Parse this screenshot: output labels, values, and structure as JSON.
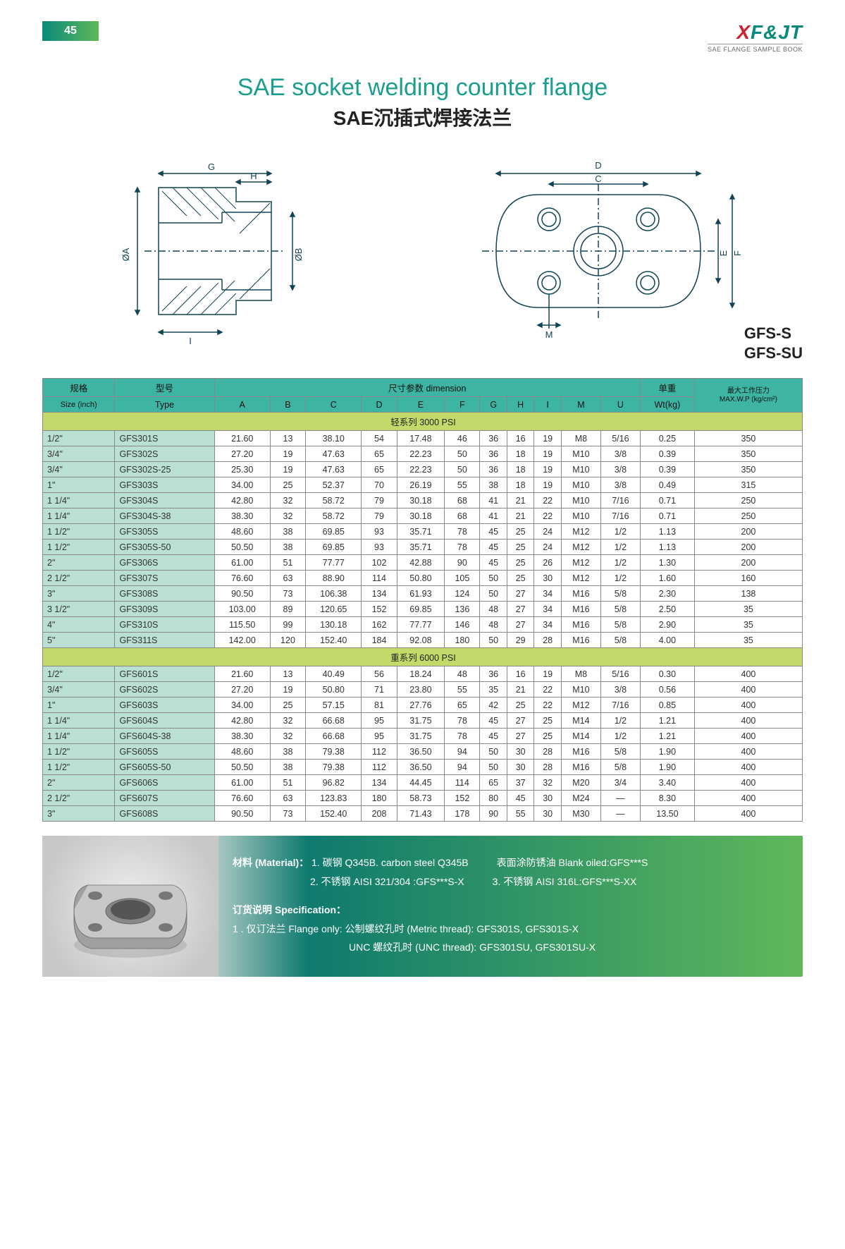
{
  "page_number": "45",
  "brand": {
    "prefix": "X",
    "suffix": "F&JT",
    "subtitle": "SAE FLANGE SAMPLE BOOK"
  },
  "title": {
    "en": "SAE socket welding counter flange",
    "cn": "SAE沉插式焊接法兰"
  },
  "model_codes": [
    "GFS-S",
    "GFS-SU"
  ],
  "diagram_labels": {
    "left": [
      "G",
      "H",
      "ØA",
      "ØB",
      "I"
    ],
    "right": [
      "D",
      "C",
      "E",
      "F",
      "M"
    ]
  },
  "table": {
    "headers_row1": {
      "size_cn": "规格",
      "type_cn": "型号",
      "dim_cn": "尺寸参数 dimension",
      "wt_cn": "单重",
      "maxwp_cn": "最大工作压力"
    },
    "headers_row2": {
      "size": "Size (inch)",
      "type": "Type",
      "cols": [
        "A",
        "B",
        "C",
        "D",
        "E",
        "F",
        "G",
        "H",
        "I",
        "M",
        "U"
      ],
      "wt": "Wt(kg)",
      "maxwp": "MAX.W.P (kg/cm²)"
    },
    "section1_label": "轻系列 3000 PSI",
    "section1_rows": [
      [
        "1/2\"",
        "GFS301S",
        "21.60",
        "13",
        "38.10",
        "54",
        "17.48",
        "46",
        "36",
        "16",
        "19",
        "M8",
        "5/16",
        "0.25",
        "350"
      ],
      [
        "3/4\"",
        "GFS302S",
        "27.20",
        "19",
        "47.63",
        "65",
        "22.23",
        "50",
        "36",
        "18",
        "19",
        "M10",
        "3/8",
        "0.39",
        "350"
      ],
      [
        "3/4\"",
        "GFS302S-25",
        "25.30",
        "19",
        "47.63",
        "65",
        "22.23",
        "50",
        "36",
        "18",
        "19",
        "M10",
        "3/8",
        "0.39",
        "350"
      ],
      [
        "1\"",
        "GFS303S",
        "34.00",
        "25",
        "52.37",
        "70",
        "26.19",
        "55",
        "38",
        "18",
        "19",
        "M10",
        "3/8",
        "0.49",
        "315"
      ],
      [
        "1 1/4\"",
        "GFS304S",
        "42.80",
        "32",
        "58.72",
        "79",
        "30.18",
        "68",
        "41",
        "21",
        "22",
        "M10",
        "7/16",
        "0.71",
        "250"
      ],
      [
        "1 1/4\"",
        "GFS304S-38",
        "38.30",
        "32",
        "58.72",
        "79",
        "30.18",
        "68",
        "41",
        "21",
        "22",
        "M10",
        "7/16",
        "0.71",
        "250"
      ],
      [
        "1 1/2\"",
        "GFS305S",
        "48.60",
        "38",
        "69.85",
        "93",
        "35.71",
        "78",
        "45",
        "25",
        "24",
        "M12",
        "1/2",
        "1.13",
        "200"
      ],
      [
        "1 1/2\"",
        "GFS305S-50",
        "50.50",
        "38",
        "69.85",
        "93",
        "35.71",
        "78",
        "45",
        "25",
        "24",
        "M12",
        "1/2",
        "1.13",
        "200"
      ],
      [
        "2\"",
        "GFS306S",
        "61.00",
        "51",
        "77.77",
        "102",
        "42.88",
        "90",
        "45",
        "25",
        "26",
        "M12",
        "1/2",
        "1.30",
        "200"
      ],
      [
        "2 1/2\"",
        "GFS307S",
        "76.60",
        "63",
        "88.90",
        "114",
        "50.80",
        "105",
        "50",
        "25",
        "30",
        "M12",
        "1/2",
        "1.60",
        "160"
      ],
      [
        "3\"",
        "GFS308S",
        "90.50",
        "73",
        "106.38",
        "134",
        "61.93",
        "124",
        "50",
        "27",
        "34",
        "M16",
        "5/8",
        "2.30",
        "138"
      ],
      [
        "3 1/2\"",
        "GFS309S",
        "103.00",
        "89",
        "120.65",
        "152",
        "69.85",
        "136",
        "48",
        "27",
        "34",
        "M16",
        "5/8",
        "2.50",
        "35"
      ],
      [
        "4\"",
        "GFS310S",
        "115.50",
        "99",
        "130.18",
        "162",
        "77.77",
        "146",
        "48",
        "27",
        "34",
        "M16",
        "5/8",
        "2.90",
        "35"
      ],
      [
        "5\"",
        "GFS311S",
        "142.00",
        "120",
        "152.40",
        "184",
        "92.08",
        "180",
        "50",
        "29",
        "28",
        "M16",
        "5/8",
        "4.00",
        "35"
      ]
    ],
    "section2_label": "重系列 6000 PSI",
    "section2_rows": [
      [
        "1/2\"",
        "GFS601S",
        "21.60",
        "13",
        "40.49",
        "56",
        "18.24",
        "48",
        "36",
        "16",
        "19",
        "M8",
        "5/16",
        "0.30",
        "400"
      ],
      [
        "3/4\"",
        "GFS602S",
        "27.20",
        "19",
        "50.80",
        "71",
        "23.80",
        "55",
        "35",
        "21",
        "22",
        "M10",
        "3/8",
        "0.56",
        "400"
      ],
      [
        "1\"",
        "GFS603S",
        "34.00",
        "25",
        "57.15",
        "81",
        "27.76",
        "65",
        "42",
        "25",
        "22",
        "M12",
        "7/16",
        "0.85",
        "400"
      ],
      [
        "1 1/4\"",
        "GFS604S",
        "42.80",
        "32",
        "66.68",
        "95",
        "31.75",
        "78",
        "45",
        "27",
        "25",
        "M14",
        "1/2",
        "1.21",
        "400"
      ],
      [
        "1 1/4\"",
        "GFS604S-38",
        "38.30",
        "32",
        "66.68",
        "95",
        "31.75",
        "78",
        "45",
        "27",
        "25",
        "M14",
        "1/2",
        "1.21",
        "400"
      ],
      [
        "1 1/2\"",
        "GFS605S",
        "48.60",
        "38",
        "79.38",
        "112",
        "36.50",
        "94",
        "50",
        "30",
        "28",
        "M16",
        "5/8",
        "1.90",
        "400"
      ],
      [
        "1 1/2\"",
        "GFS605S-50",
        "50.50",
        "38",
        "79.38",
        "112",
        "36.50",
        "94",
        "50",
        "30",
        "28",
        "M16",
        "5/8",
        "1.90",
        "400"
      ],
      [
        "2\"",
        "GFS606S",
        "61.00",
        "51",
        "96.82",
        "134",
        "44.45",
        "114",
        "65",
        "37",
        "32",
        "M20",
        "3/4",
        "3.40",
        "400"
      ],
      [
        "2 1/2\"",
        "GFS607S",
        "76.60",
        "63",
        "123.83",
        "180",
        "58.73",
        "152",
        "80",
        "45",
        "30",
        "M24",
        "—",
        "8.30",
        "400"
      ],
      [
        "3\"",
        "GFS608S",
        "90.50",
        "73",
        "152.40",
        "208",
        "71.43",
        "178",
        "90",
        "55",
        "30",
        "M30",
        "—",
        "13.50",
        "400"
      ]
    ]
  },
  "footer": {
    "material_label": "材料 (Material)：",
    "m1": "1. 碳钢 Q345B. carbon steel Q345B",
    "m1b": "表面涂防锈油 Blank oiled:GFS***S",
    "m2": "2. 不锈钢 AISI 321/304 :GFS***S-X",
    "m3": "3. 不锈钢 AISI 316L:GFS***S-XX",
    "spec_label": "订货说明 Specification：",
    "s1": "1 . 仅订法兰 Flange only: 公制螺纹孔时 (Metric thread): GFS301S, GFS301S-X",
    "s2": "UNC 螺纹孔时 (UNC thread): GFS301SU, GFS301SU-X"
  },
  "colors": {
    "teal": "#3eb5a3",
    "teal_dark": "#0a8a7a",
    "green": "#5fb85a",
    "row_green": "#c3d96a",
    "cell_teal": "#b9e0d2",
    "red": "#d02030"
  }
}
